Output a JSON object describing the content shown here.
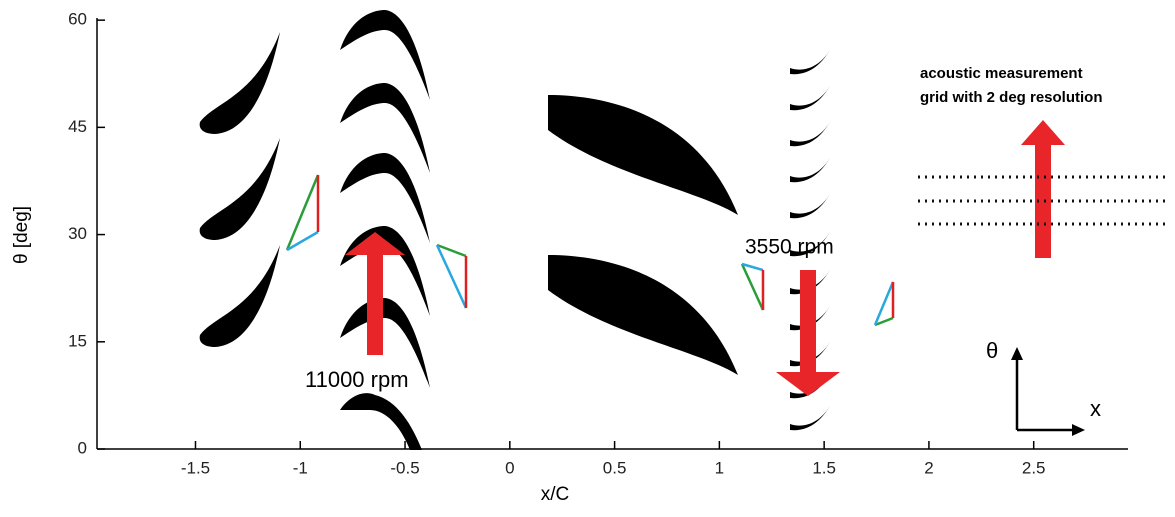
{
  "axes": {
    "xlabel": "x/C",
    "ylabel": "θ [deg]",
    "xlim": [
      -1.97,
      2.95
    ],
    "ylim": [
      0,
      60.3
    ],
    "xticks": [
      -1.5,
      -1,
      -0.5,
      0,
      0.5,
      1,
      1.5,
      2,
      2.5
    ],
    "yticks": [
      0,
      15,
      30,
      45,
      60
    ]
  },
  "annotations": {
    "rotor_speed_1": "11000 rpm",
    "rotor_speed_2": "3550 rpm",
    "grid_note": [
      "acoustic measurement",
      "grid with 2 deg resolution"
    ],
    "coord_theta": "θ",
    "coord_x": "x"
  }
}
